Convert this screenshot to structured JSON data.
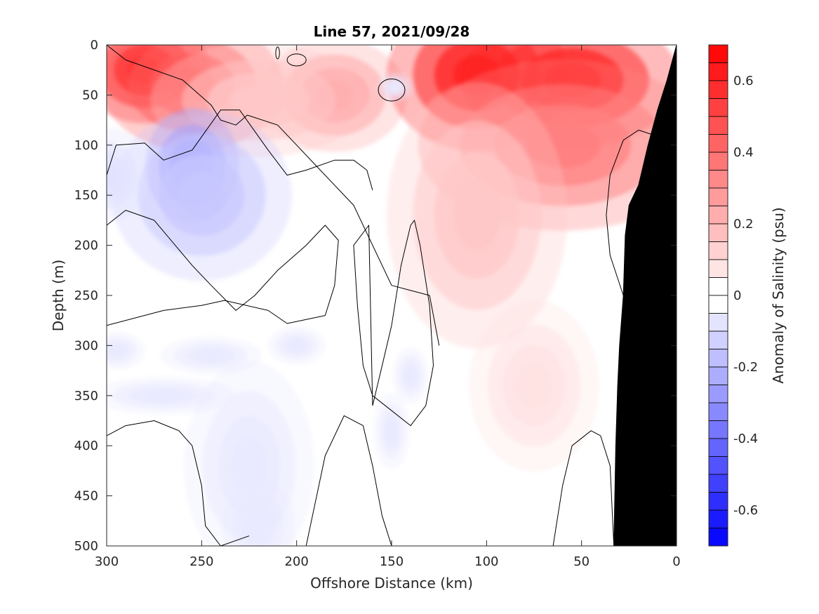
{
  "chart_data": {
    "type": "heatmap",
    "title": "Line 57, 2021/09/28",
    "xlabel": "Offshore Distance (km)",
    "ylabel": "Depth (m)",
    "colorbar_label": "Anomaly of Salinity (psu)",
    "xlim": [
      300,
      0
    ],
    "ylim": [
      500,
      0
    ],
    "x_reversed": true,
    "y_reversed": true,
    "x_ticks": [
      300,
      250,
      200,
      150,
      100,
      50,
      0
    ],
    "x_tick_labels": [
      "300",
      "250",
      "200",
      "150",
      "100",
      "50",
      "0"
    ],
    "y_ticks": [
      0,
      50,
      100,
      150,
      200,
      250,
      300,
      350,
      400,
      450,
      500
    ],
    "y_tick_labels": [
      "0",
      "50",
      "100",
      "150",
      "200",
      "250",
      "300",
      "350",
      "400",
      "450",
      "500"
    ],
    "colorbar_range": [
      -0.7,
      0.7
    ],
    "colorbar_ticks": [
      0.6,
      0.4,
      0.2,
      0,
      -0.2,
      -0.4,
      -0.6
    ],
    "colorbar_tick_labels": [
      "0.6",
      "0.4",
      "0.2",
      "0",
      "-0.2",
      "-0.4",
      "-0.6"
    ],
    "colorbar_levels": 28,
    "colors": {
      "positive": "#ff0000",
      "negative": "#0000ff",
      "neutral": "#ffffff",
      "bathymetry": "#000000",
      "contour": "#000000"
    },
    "features": [
      {
        "sign": "positive",
        "anomaly": 0.6,
        "x_km": 280,
        "depth_m": 25,
        "sx_km": 18,
        "sy_m": 28
      },
      {
        "sign": "positive",
        "anomaly": 0.45,
        "x_km": 255,
        "depth_m": 40,
        "sx_km": 25,
        "sy_m": 35
      },
      {
        "sign": "positive",
        "anomaly": 0.25,
        "x_km": 180,
        "depth_m": 50,
        "sx_km": 20,
        "sy_m": 30
      },
      {
        "sign": "positive",
        "anomaly": 0.15,
        "x_km": 220,
        "depth_m": 55,
        "sx_km": 30,
        "sy_m": 30
      },
      {
        "sign": "positive",
        "anomaly": 0.6,
        "x_km": 105,
        "depth_m": 30,
        "sx_km": 25,
        "sy_m": 40
      },
      {
        "sign": "positive",
        "anomaly": 0.6,
        "x_km": 55,
        "depth_m": 35,
        "sx_km": 30,
        "sy_m": 35
      },
      {
        "sign": "positive",
        "anomaly": 0.35,
        "x_km": 60,
        "depth_m": 100,
        "sx_km": 40,
        "sy_m": 45
      },
      {
        "sign": "positive",
        "anomaly": 0.15,
        "x_km": 105,
        "depth_m": 170,
        "sx_km": 25,
        "sy_m": 70
      },
      {
        "sign": "positive",
        "anomaly": 0.08,
        "x_km": 75,
        "depth_m": 340,
        "sx_km": 18,
        "sy_m": 45
      },
      {
        "sign": "negative",
        "anomaly": -0.3,
        "x_km": 255,
        "depth_m": 120,
        "sx_km": 13,
        "sy_m": 30
      },
      {
        "sign": "negative",
        "anomaly": -0.15,
        "x_km": 250,
        "depth_m": 150,
        "sx_km": 25,
        "sy_m": 45
      },
      {
        "sign": "negative",
        "anomaly": -0.08,
        "x_km": 300,
        "depth_m": 130,
        "sx_km": 12,
        "sy_m": 25
      },
      {
        "sign": "negative",
        "anomaly": -0.06,
        "x_km": 148,
        "depth_m": 42,
        "sx_km": 5,
        "sy_m": 8
      },
      {
        "sign": "negative",
        "anomaly": -0.06,
        "x_km": 245,
        "depth_m": 310,
        "sx_km": 14,
        "sy_m": 10
      },
      {
        "sign": "negative",
        "anomaly": -0.06,
        "x_km": 295,
        "depth_m": 305,
        "sx_km": 8,
        "sy_m": 10
      },
      {
        "sign": "negative",
        "anomaly": -0.06,
        "x_km": 270,
        "depth_m": 350,
        "sx_km": 20,
        "sy_m": 10
      },
      {
        "sign": "negative",
        "anomaly": -0.06,
        "x_km": 200,
        "depth_m": 300,
        "sx_km": 8,
        "sy_m": 10
      },
      {
        "sign": "negative",
        "anomaly": -0.06,
        "x_km": 225,
        "depth_m": 420,
        "sx_km": 18,
        "sy_m": 55
      },
      {
        "sign": "negative",
        "anomaly": -0.06,
        "x_km": 220,
        "depth_m": 480,
        "sx_km": 10,
        "sy_m": 25
      },
      {
        "sign": "negative",
        "anomaly": -0.06,
        "x_km": 140,
        "depth_m": 330,
        "sx_km": 5,
        "sy_m": 15
      },
      {
        "sign": "negative",
        "anomaly": -0.06,
        "x_km": 150,
        "depth_m": 385,
        "sx_km": 5,
        "sy_m": 20
      }
    ],
    "zero_contours": [
      {
        "depth_m": [
          0,
          15,
          35,
          60,
          75,
          80,
          70,
          80,
          100,
          120,
          160,
          240,
          245,
          250,
          300
        ],
        "x_km": [
          300,
          290,
          260,
          245,
          240,
          232,
          226,
          210,
          200,
          190,
          170,
          150,
          140,
          130,
          125
        ]
      },
      {
        "x_km": [
          300,
          295,
          280,
          270,
          255,
          240,
          230,
          215,
          205,
          195,
          180,
          170,
          163,
          160
        ],
        "depth_m": [
          130,
          100,
          98,
          115,
          105,
          65,
          65,
          105,
          130,
          125,
          115,
          115,
          125,
          145
        ]
      },
      {
        "x_km": [
          300,
          290,
          275,
          255,
          245,
          232,
          222,
          210,
          195,
          185,
          178,
          180,
          185,
          205,
          215,
          238,
          250,
          270,
          300
        ],
        "depth_m": [
          180,
          165,
          175,
          220,
          240,
          265,
          250,
          225,
          200,
          180,
          195,
          240,
          270,
          278,
          265,
          255,
          260,
          265,
          280
        ]
      },
      {
        "x_km": [
          160,
          155,
          150,
          145,
          140,
          138,
          135,
          130,
          128,
          132,
          140,
          150,
          160,
          165,
          168,
          170,
          162,
          160
        ],
        "depth_m": [
          360,
          320,
          280,
          220,
          180,
          175,
          200,
          260,
          320,
          360,
          380,
          365,
          350,
          320,
          260,
          200,
          180,
          360
        ]
      },
      {
        "x_km": [
          300,
          290,
          275,
          262,
          255,
          250,
          248,
          240,
          225
        ],
        "depth_m": [
          390,
          380,
          375,
          385,
          400,
          440,
          480,
          500,
          490
        ]
      },
      {
        "x_km": [
          195,
          185,
          175,
          165,
          160,
          155,
          150
        ],
        "depth_m": [
          500,
          410,
          370,
          380,
          420,
          470,
          500
        ]
      },
      {
        "x_km": [
          65,
          60,
          55,
          45,
          40,
          35,
          33
        ],
        "depth_m": [
          500,
          440,
          400,
          385,
          390,
          420,
          500
        ]
      },
      {
        "x_km": [
          12,
          20,
          28,
          35,
          37,
          35,
          28,
          25
        ],
        "depth_m": [
          90,
          85,
          95,
          130,
          170,
          210,
          250,
          270
        ]
      }
    ],
    "small_contours": [
      {
        "x_km": 150,
        "depth_m": 45,
        "rx_km": 7,
        "ry_m": 11
      },
      {
        "x_km": 200,
        "depth_m": 15,
        "rx_km": 5,
        "ry_m": 6
      },
      {
        "x_km": 210,
        "depth_m": 8,
        "rx_km": 1,
        "ry_m": 6
      }
    ],
    "bathymetry": {
      "x_km": [
        0,
        0,
        5,
        10,
        15,
        20,
        25,
        27,
        28,
        30,
        31,
        32,
        33
      ],
      "depth_m": [
        35,
        0,
        35,
        65,
        100,
        140,
        160,
        190,
        250,
        300,
        340,
        400,
        500
      ]
    }
  }
}
